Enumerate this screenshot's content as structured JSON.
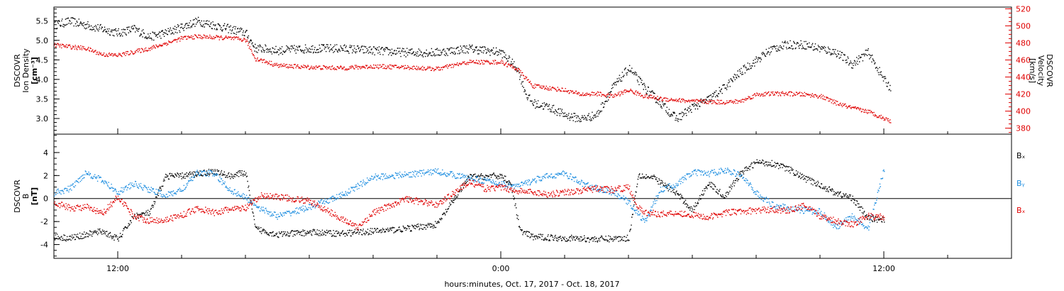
{
  "chart_data": [
    {
      "type": "scatter",
      "xlabel": "hours:minutes, Oct. 17, 2017 - Oct. 18, 2017",
      "x_ticks": [
        {
          "label": "12:00",
          "hour": 12
        },
        {
          "label": "0:00",
          "hour": 24
        },
        {
          "label": "12:00",
          "hour": 36
        }
      ],
      "x_range_hours": [
        10,
        40
      ],
      "ylabel_lines": [
        "DSCOVR",
        "Ion Density",
        "[cm⁻³]"
      ],
      "ylim": [
        2.6,
        5.85
      ],
      "y_ticks": [
        3.0,
        3.5,
        4.0,
        4.5,
        5.0,
        5.5
      ],
      "y_tick_labels": [
        "3.0",
        "3.5",
        "4.0",
        "4.5",
        "5.0",
        "5.5"
      ],
      "y2label_lines": [
        "DSCOVR",
        "Velocity",
        "[km/s]"
      ],
      "y2lim": [
        373,
        522
      ],
      "y2_ticks": [
        380,
        400,
        420,
        440,
        460,
        480,
        500,
        520
      ],
      "y2_tick_labels": [
        "380",
        "400",
        "420",
        "440",
        "460",
        "480",
        "500",
        "520"
      ],
      "series": [
        {
          "color": "#000000",
          "axis": "left",
          "points": [
            [
              10.0,
              5.4
            ],
            [
              10.5,
              5.5
            ],
            [
              11.0,
              5.4
            ],
            [
              11.5,
              5.3
            ],
            [
              12.0,
              5.2
            ],
            [
              12.5,
              5.3
            ],
            [
              13.0,
              5.1
            ],
            [
              13.5,
              5.2
            ],
            [
              14.0,
              5.35
            ],
            [
              14.5,
              5.5
            ],
            [
              15.0,
              5.4
            ],
            [
              15.5,
              5.3
            ],
            [
              16.0,
              5.2
            ],
            [
              16.3,
              4.8
            ],
            [
              16.5,
              4.8
            ],
            [
              17.0,
              4.75
            ],
            [
              18.0,
              4.8
            ],
            [
              19.0,
              4.8
            ],
            [
              20.0,
              4.75
            ],
            [
              21.0,
              4.7
            ],
            [
              22.0,
              4.7
            ],
            [
              23.0,
              4.8
            ],
            [
              24.0,
              4.7
            ],
            [
              24.5,
              4.3
            ],
            [
              24.8,
              3.6
            ],
            [
              25.0,
              3.4
            ],
            [
              25.5,
              3.3
            ],
            [
              26.0,
              3.1
            ],
            [
              26.5,
              3.0
            ],
            [
              27.0,
              3.1
            ],
            [
              27.5,
              3.8
            ],
            [
              28.0,
              4.3
            ],
            [
              28.5,
              3.8
            ],
            [
              29.0,
              3.4
            ],
            [
              29.5,
              3.0
            ],
            [
              30.0,
              3.3
            ],
            [
              30.5,
              3.5
            ],
            [
              31.0,
              3.8
            ],
            [
              31.5,
              4.2
            ],
            [
              32.0,
              4.5
            ],
            [
              32.5,
              4.8
            ],
            [
              33.0,
              4.9
            ],
            [
              33.5,
              4.9
            ],
            [
              34.0,
              4.8
            ],
            [
              34.5,
              4.7
            ],
            [
              35.0,
              4.4
            ],
            [
              35.5,
              4.7
            ],
            [
              36.0,
              4.0
            ],
            [
              36.2,
              3.8
            ]
          ]
        },
        {
          "color": "#e00000",
          "axis": "right",
          "points": [
            [
              10.0,
              478
            ],
            [
              10.5,
              476
            ],
            [
              11.0,
              474
            ],
            [
              11.5,
              467
            ],
            [
              12.0,
              466
            ],
            [
              12.5,
              470
            ],
            [
              13.0,
              474
            ],
            [
              13.5,
              480
            ],
            [
              14.0,
              486
            ],
            [
              14.5,
              488
            ],
            [
              15.0,
              487
            ],
            [
              15.5,
              486
            ],
            [
              16.0,
              484
            ],
            [
              16.3,
              462
            ],
            [
              16.5,
              460
            ],
            [
              17.0,
              454
            ],
            [
              18.0,
              452
            ],
            [
              19.0,
              451
            ],
            [
              20.0,
              453
            ],
            [
              21.0,
              452
            ],
            [
              22.0,
              450
            ],
            [
              23.0,
              458
            ],
            [
              24.0,
              458
            ],
            [
              24.5,
              450
            ],
            [
              25.0,
              430
            ],
            [
              26.0,
              425
            ],
            [
              26.5,
              420
            ],
            [
              27.0,
              421
            ],
            [
              27.5,
              418
            ],
            [
              28.0,
              425
            ],
            [
              28.5,
              418
            ],
            [
              29.0,
              415
            ],
            [
              30.0,
              412
            ],
            [
              31.0,
              411
            ],
            [
              31.5,
              412
            ],
            [
              32.0,
              420
            ],
            [
              32.5,
              421
            ],
            [
              33.0,
              421
            ],
            [
              33.5,
              420
            ],
            [
              34.0,
              418
            ],
            [
              34.5,
              410
            ],
            [
              35.0,
              404
            ],
            [
              35.5,
              400
            ],
            [
              36.0,
              392
            ],
            [
              36.2,
              389
            ]
          ]
        }
      ]
    },
    {
      "type": "scatter",
      "xlabel": "hours:minutes, Oct. 17, 2017 - Oct. 18, 2017",
      "x_ticks": [
        {
          "label": "12:00",
          "hour": 12
        },
        {
          "label": "0:00",
          "hour": 24
        },
        {
          "label": "12:00",
          "hour": 36
        }
      ],
      "x_range_hours": [
        10,
        40
      ],
      "ylabel_lines": [
        "DSCOVR",
        "B",
        "[nT]"
      ],
      "ylim": [
        -5.2,
        5.6
      ],
      "y_ticks": [
        -4,
        -2,
        0,
        2,
        4
      ],
      "y_tick_labels": [
        "-4",
        "-2",
        "0",
        "2",
        "4"
      ],
      "zero_line": true,
      "legend_labels": [
        "Bₓ",
        "Bᵧ",
        "Bₓ"
      ],
      "series": [
        {
          "label": "Bₓ",
          "color": "#000000",
          "points": [
            [
              10.0,
              -3.3
            ],
            [
              10.5,
              -3.4
            ],
            [
              11.0,
              -3.1
            ],
            [
              11.5,
              -2.8
            ],
            [
              12.0,
              -3.5
            ],
            [
              12.5,
              -1.5
            ],
            [
              13.0,
              -1.2
            ],
            [
              13.5,
              2.0
            ],
            [
              14.0,
              2.0
            ],
            [
              14.5,
              2.2
            ],
            [
              15.0,
              2.4
            ],
            [
              15.5,
              2.0
            ],
            [
              16.0,
              2.3
            ],
            [
              16.3,
              -2.6
            ],
            [
              17.0,
              -3.1
            ],
            [
              18.0,
              -2.9
            ],
            [
              19.0,
              -3.0
            ],
            [
              20.0,
              -2.8
            ],
            [
              21.0,
              -2.6
            ],
            [
              22.0,
              -2.2
            ],
            [
              23.0,
              1.9
            ],
            [
              24.0,
              2.0
            ],
            [
              24.3,
              1.4
            ],
            [
              24.6,
              -2.8
            ],
            [
              25.0,
              -3.3
            ],
            [
              26.0,
              -3.4
            ],
            [
              27.0,
              -3.5
            ],
            [
              28.0,
              -3.4
            ],
            [
              28.3,
              2.1
            ],
            [
              28.8,
              1.8
            ],
            [
              29.5,
              0.5
            ],
            [
              30.0,
              -1.0
            ],
            [
              30.5,
              1.4
            ],
            [
              31.0,
              0.2
            ],
            [
              31.5,
              2.2
            ],
            [
              32.0,
              3.2
            ],
            [
              32.5,
              3.1
            ],
            [
              33.0,
              2.6
            ],
            [
              33.5,
              1.8
            ],
            [
              34.0,
              1.2
            ],
            [
              34.5,
              0.5
            ],
            [
              35.0,
              0.1
            ],
            [
              35.5,
              -1.7
            ],
            [
              36.0,
              -1.8
            ]
          ]
        },
        {
          "label": "Bᵧ",
          "color": "#1e8ee0",
          "points": [
            [
              10.0,
              0.5
            ],
            [
              10.5,
              0.9
            ],
            [
              11.0,
              2.3
            ],
            [
              11.5,
              1.6
            ],
            [
              12.0,
              0.6
            ],
            [
              12.5,
              1.3
            ],
            [
              13.0,
              0.8
            ],
            [
              13.5,
              0.3
            ],
            [
              14.0,
              0.8
            ],
            [
              14.5,
              2.3
            ],
            [
              15.0,
              2.2
            ],
            [
              15.5,
              0.8
            ],
            [
              16.0,
              0.1
            ],
            [
              16.5,
              -0.9
            ],
            [
              17.0,
              -1.5
            ],
            [
              18.0,
              -0.7
            ],
            [
              19.0,
              0.3
            ],
            [
              20.0,
              1.9
            ],
            [
              21.0,
              2.1
            ],
            [
              22.0,
              2.4
            ],
            [
              23.0,
              1.8
            ],
            [
              23.5,
              1.6
            ],
            [
              24.0,
              1.3
            ],
            [
              24.5,
              1.1
            ],
            [
              25.0,
              1.6
            ],
            [
              25.5,
              2.0
            ],
            [
              26.0,
              2.2
            ],
            [
              26.5,
              1.4
            ],
            [
              27.0,
              0.9
            ],
            [
              27.5,
              0.6
            ],
            [
              28.0,
              -0.3
            ],
            [
              28.5,
              -2.0
            ],
            [
              29.0,
              0.8
            ],
            [
              29.5,
              1.3
            ],
            [
              30.0,
              2.3
            ],
            [
              30.5,
              2.2
            ],
            [
              31.0,
              2.5
            ],
            [
              31.5,
              2.1
            ],
            [
              32.0,
              0.5
            ],
            [
              32.5,
              -0.5
            ],
            [
              33.0,
              -0.8
            ],
            [
              33.5,
              -1.0
            ],
            [
              34.0,
              -1.1
            ],
            [
              34.5,
              -2.5
            ],
            [
              35.0,
              -1.5
            ],
            [
              35.5,
              -2.6
            ],
            [
              36.0,
              2.6
            ]
          ]
        },
        {
          "label": "Bₓ",
          "color": "#e00000",
          "points": [
            [
              10.0,
              -0.3
            ],
            [
              10.5,
              -0.8
            ],
            [
              11.0,
              -0.7
            ],
            [
              11.5,
              -1.3
            ],
            [
              12.0,
              0.2
            ],
            [
              12.5,
              -1.5
            ],
            [
              13.0,
              -1.9
            ],
            [
              13.5,
              -1.8
            ],
            [
              14.0,
              -1.4
            ],
            [
              14.5,
              -0.8
            ],
            [
              15.0,
              -1.2
            ],
            [
              15.5,
              -0.9
            ],
            [
              16.0,
              -0.8
            ],
            [
              16.5,
              0.3
            ],
            [
              17.0,
              0.2
            ],
            [
              18.0,
              -0.2
            ],
            [
              19.0,
              -1.7
            ],
            [
              19.5,
              -2.5
            ],
            [
              20.0,
              -1.2
            ],
            [
              21.0,
              0.0
            ],
            [
              22.0,
              -0.5
            ],
            [
              23.0,
              1.5
            ],
            [
              23.5,
              0.9
            ],
            [
              24.0,
              1.0
            ],
            [
              24.5,
              0.7
            ],
            [
              25.0,
              0.6
            ],
            [
              25.5,
              0.4
            ],
            [
              26.0,
              0.6
            ],
            [
              26.5,
              0.7
            ],
            [
              27.0,
              0.9
            ],
            [
              27.5,
              0.8
            ],
            [
              28.0,
              1.0
            ],
            [
              28.3,
              -0.8
            ],
            [
              28.5,
              -1.2
            ],
            [
              29.0,
              -1.3
            ],
            [
              29.5,
              -1.2
            ],
            [
              30.0,
              -1.4
            ],
            [
              30.5,
              -1.6
            ],
            [
              31.0,
              -1.2
            ],
            [
              31.5,
              -1.1
            ],
            [
              32.0,
              -1.0
            ],
            [
              32.5,
              -0.9
            ],
            [
              33.0,
              -1.0
            ],
            [
              33.5,
              -0.6
            ],
            [
              34.0,
              -1.5
            ],
            [
              34.5,
              -1.9
            ],
            [
              35.0,
              -2.2
            ],
            [
              35.5,
              -1.5
            ],
            [
              36.0,
              -1.6
            ]
          ]
        }
      ]
    }
  ]
}
